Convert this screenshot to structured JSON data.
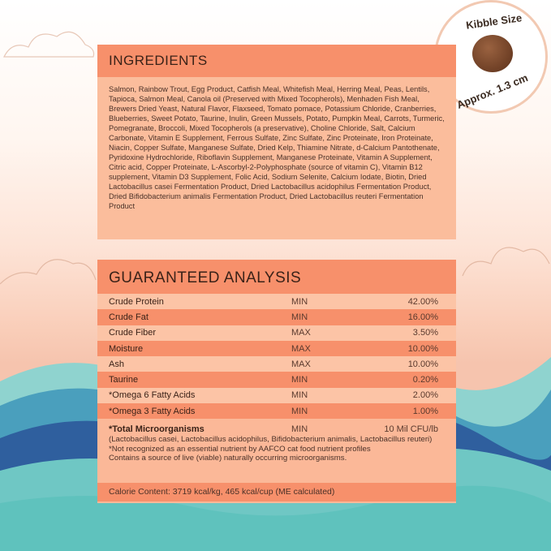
{
  "kibble": {
    "title": "Kibble Size",
    "size": "Approx. 1.3 cm"
  },
  "ingredients": {
    "title": "INGREDIENTS",
    "text": "Salmon, Rainbow Trout, Egg Product, Catfish Meal, Whitefish Meal, Herring Meal, Peas, Lentils, Tapioca, Salmon Meal, Canola oil (Preserved with Mixed Tocopherols), Menhaden Fish Meal, Brewers Dried Yeast, Natural Flavor, Flaxseed, Tomato pomace, Potassium Chloride, Cranberries, Blueberries, Sweet Potato, Taurine, Inulin, Green Mussels, Potato, Pumpkin Meal, Carrots, Turmeric, Pomegranate, Broccoli, Mixed Tocopherols (a preservative), Choline Chloride, Salt, Calcium Carbonate, Vitamin E Supplement, Ferrous Sulfate, Zinc Sulfate, Zinc Proteinate, Iron Proteinate, Niacin, Copper Sulfate, Manganese Sulfate, Dried Kelp, Thiamine Nitrate, d-Calcium Pantothenate, Pyridoxine Hydrochloride, Riboflavin Supplement, Manganese Proteinate, Vitamin A Supplement, Citric acid, Copper Proteinate, L-Ascorbyl-2-Polyphosphate (source of vitamin C), Vitamin B12 supplement, Vitamin D3 Supplement, Folic Acid, Sodium Selenite, Calcium Iodate, Biotin, Dried Lactobacillus casei Fermentation Product, Dried Lactobacillus acidophilus Fermentation Product, Dried Bifidobacterium animalis Fermentation Product, Dried Lactobacillus reuteri Fermentation Product"
  },
  "analysis": {
    "title": "GUARANTEED ANALYSIS",
    "rows": [
      {
        "name": "Crude Protein",
        "type": "MIN",
        "value": "42.00%"
      },
      {
        "name": "Crude Fat",
        "type": "MIN",
        "value": "16.00%"
      },
      {
        "name": "Crude Fiber",
        "type": "MAX",
        "value": "3.50%"
      },
      {
        "name": "Moisture",
        "type": "MAX",
        "value": "10.00%"
      },
      {
        "name": "Ash",
        "type": "MAX",
        "value": "10.00%"
      },
      {
        "name": "Taurine",
        "type": "MIN",
        "value": "0.20%"
      },
      {
        "name": "*Omega 6 Fatty Acids",
        "type": "MIN",
        "value": "2.00%"
      },
      {
        "name": "*Omega 3 Fatty Acids",
        "type": "MIN",
        "value": "1.00%"
      }
    ],
    "micro": {
      "name": "*Total Microorganisms",
      "type": "MIN",
      "value": "10 Mil CFU/lb",
      "strains": "(Lactobacillus casei, Lactobacillus acidophilus, Bifidobacterium animalis, Lactobacillus reuteri)",
      "note1": "*Not recognized as an essential nutrient by AAFCO cat food nutrient profiles",
      "note2": "Contains a source of live (viable) naturally occurring microorganisms."
    },
    "calorie": "Calorie Content: 3719 kcal/kg, 465 kcal/cup (ME calculated)"
  }
}
